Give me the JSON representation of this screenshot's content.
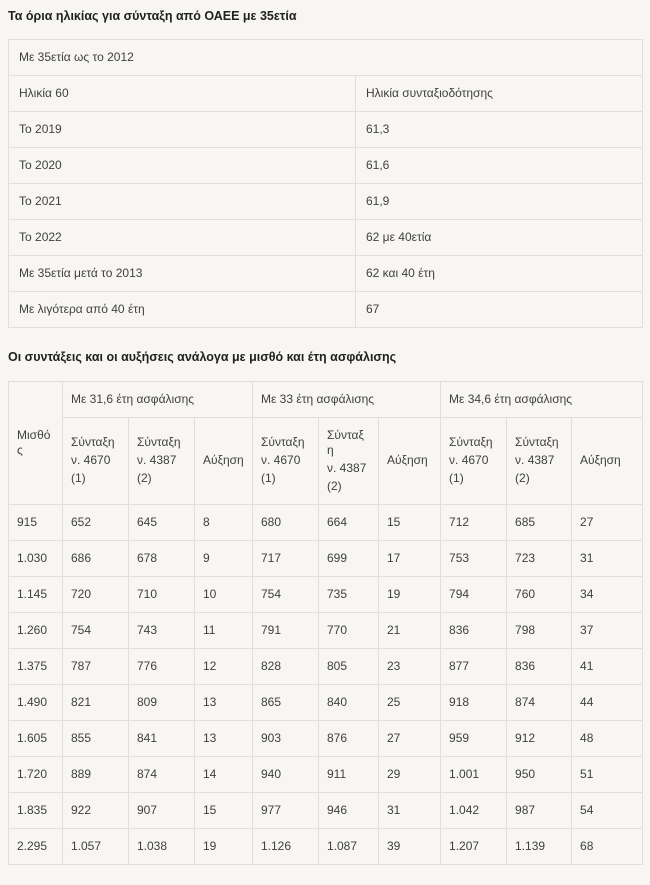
{
  "colors": {
    "background": "#f7f6f3",
    "border": "#e1dfdc",
    "text": "#3f3f3f",
    "heading": "#212121"
  },
  "section1": {
    "title": "Τα όρια ηλικίας για σύνταξη από ΟΑΕΕ με 35ετία",
    "table": {
      "span_header": "Με 35ετία ως το 2012",
      "column_headers": [
        "Ηλικία 60",
        "Ηλικία συνταξιοδότησης"
      ],
      "rows": [
        [
          "Το 2019",
          "61,3"
        ],
        [
          "Το 2020",
          "61,6"
        ],
        [
          "Το 2021",
          "61,9"
        ],
        [
          "Το 2022",
          "62 με 40ετία"
        ],
        [
          "Με 35ετία μετά το 2013",
          "62 και 40 έτη"
        ],
        [
          "Με λιγότερα από 40 έτη",
          "67"
        ]
      ]
    }
  },
  "section2": {
    "title": "Οι συντάξεις και οι αυξήσεις ανάλογα με μισθό και έτη ασφάλισης",
    "table": {
      "salary_header": "Μισθός",
      "group_headers": [
        "Με 31,6 έτη ασφάλισης",
        "Με 33 έτη ασφάλισης",
        "Με 34,6 έτη ασφάλισης"
      ],
      "sub_headers": [
        {
          "lines": [
            "Σύνταξη",
            "ν. 4670",
            "(1)"
          ]
        },
        {
          "lines": [
            "Σύνταξη",
            "ν. 4387",
            "(2)"
          ]
        },
        {
          "lines": [
            "Αύξηση"
          ]
        }
      ],
      "rows": [
        [
          "915",
          "652",
          "645",
          "8",
          "680",
          "664",
          "15",
          "712",
          "685",
          "27"
        ],
        [
          "1.030",
          "686",
          "678",
          "9",
          "717",
          "699",
          "17",
          "753",
          "723",
          "31"
        ],
        [
          "1.145",
          "720",
          "710",
          "10",
          "754",
          "735",
          "19",
          "794",
          "760",
          "34"
        ],
        [
          "1.260",
          "754",
          "743",
          "11",
          "791",
          "770",
          "21",
          "836",
          "798",
          "37"
        ],
        [
          "1.375",
          "787",
          "776",
          "12",
          "828",
          "805",
          "23",
          "877",
          "836",
          "41"
        ],
        [
          "1.490",
          "821",
          "809",
          "13",
          "865",
          "840",
          "25",
          "918",
          "874",
          "44"
        ],
        [
          "1.605",
          "855",
          "841",
          "13",
          "903",
          "876",
          "27",
          "959",
          "912",
          "48"
        ],
        [
          "1.720",
          "889",
          "874",
          "14",
          "940",
          "911",
          "29",
          "1.001",
          "950",
          "51"
        ],
        [
          "1.835",
          "922",
          "907",
          "15",
          "977",
          "946",
          "31",
          "1.042",
          "987",
          "54"
        ],
        [
          "2.295",
          "1.057",
          "1.038",
          "19",
          "1.126",
          "1.087",
          "39",
          "1.207",
          "1.139",
          "68"
        ]
      ]
    }
  }
}
